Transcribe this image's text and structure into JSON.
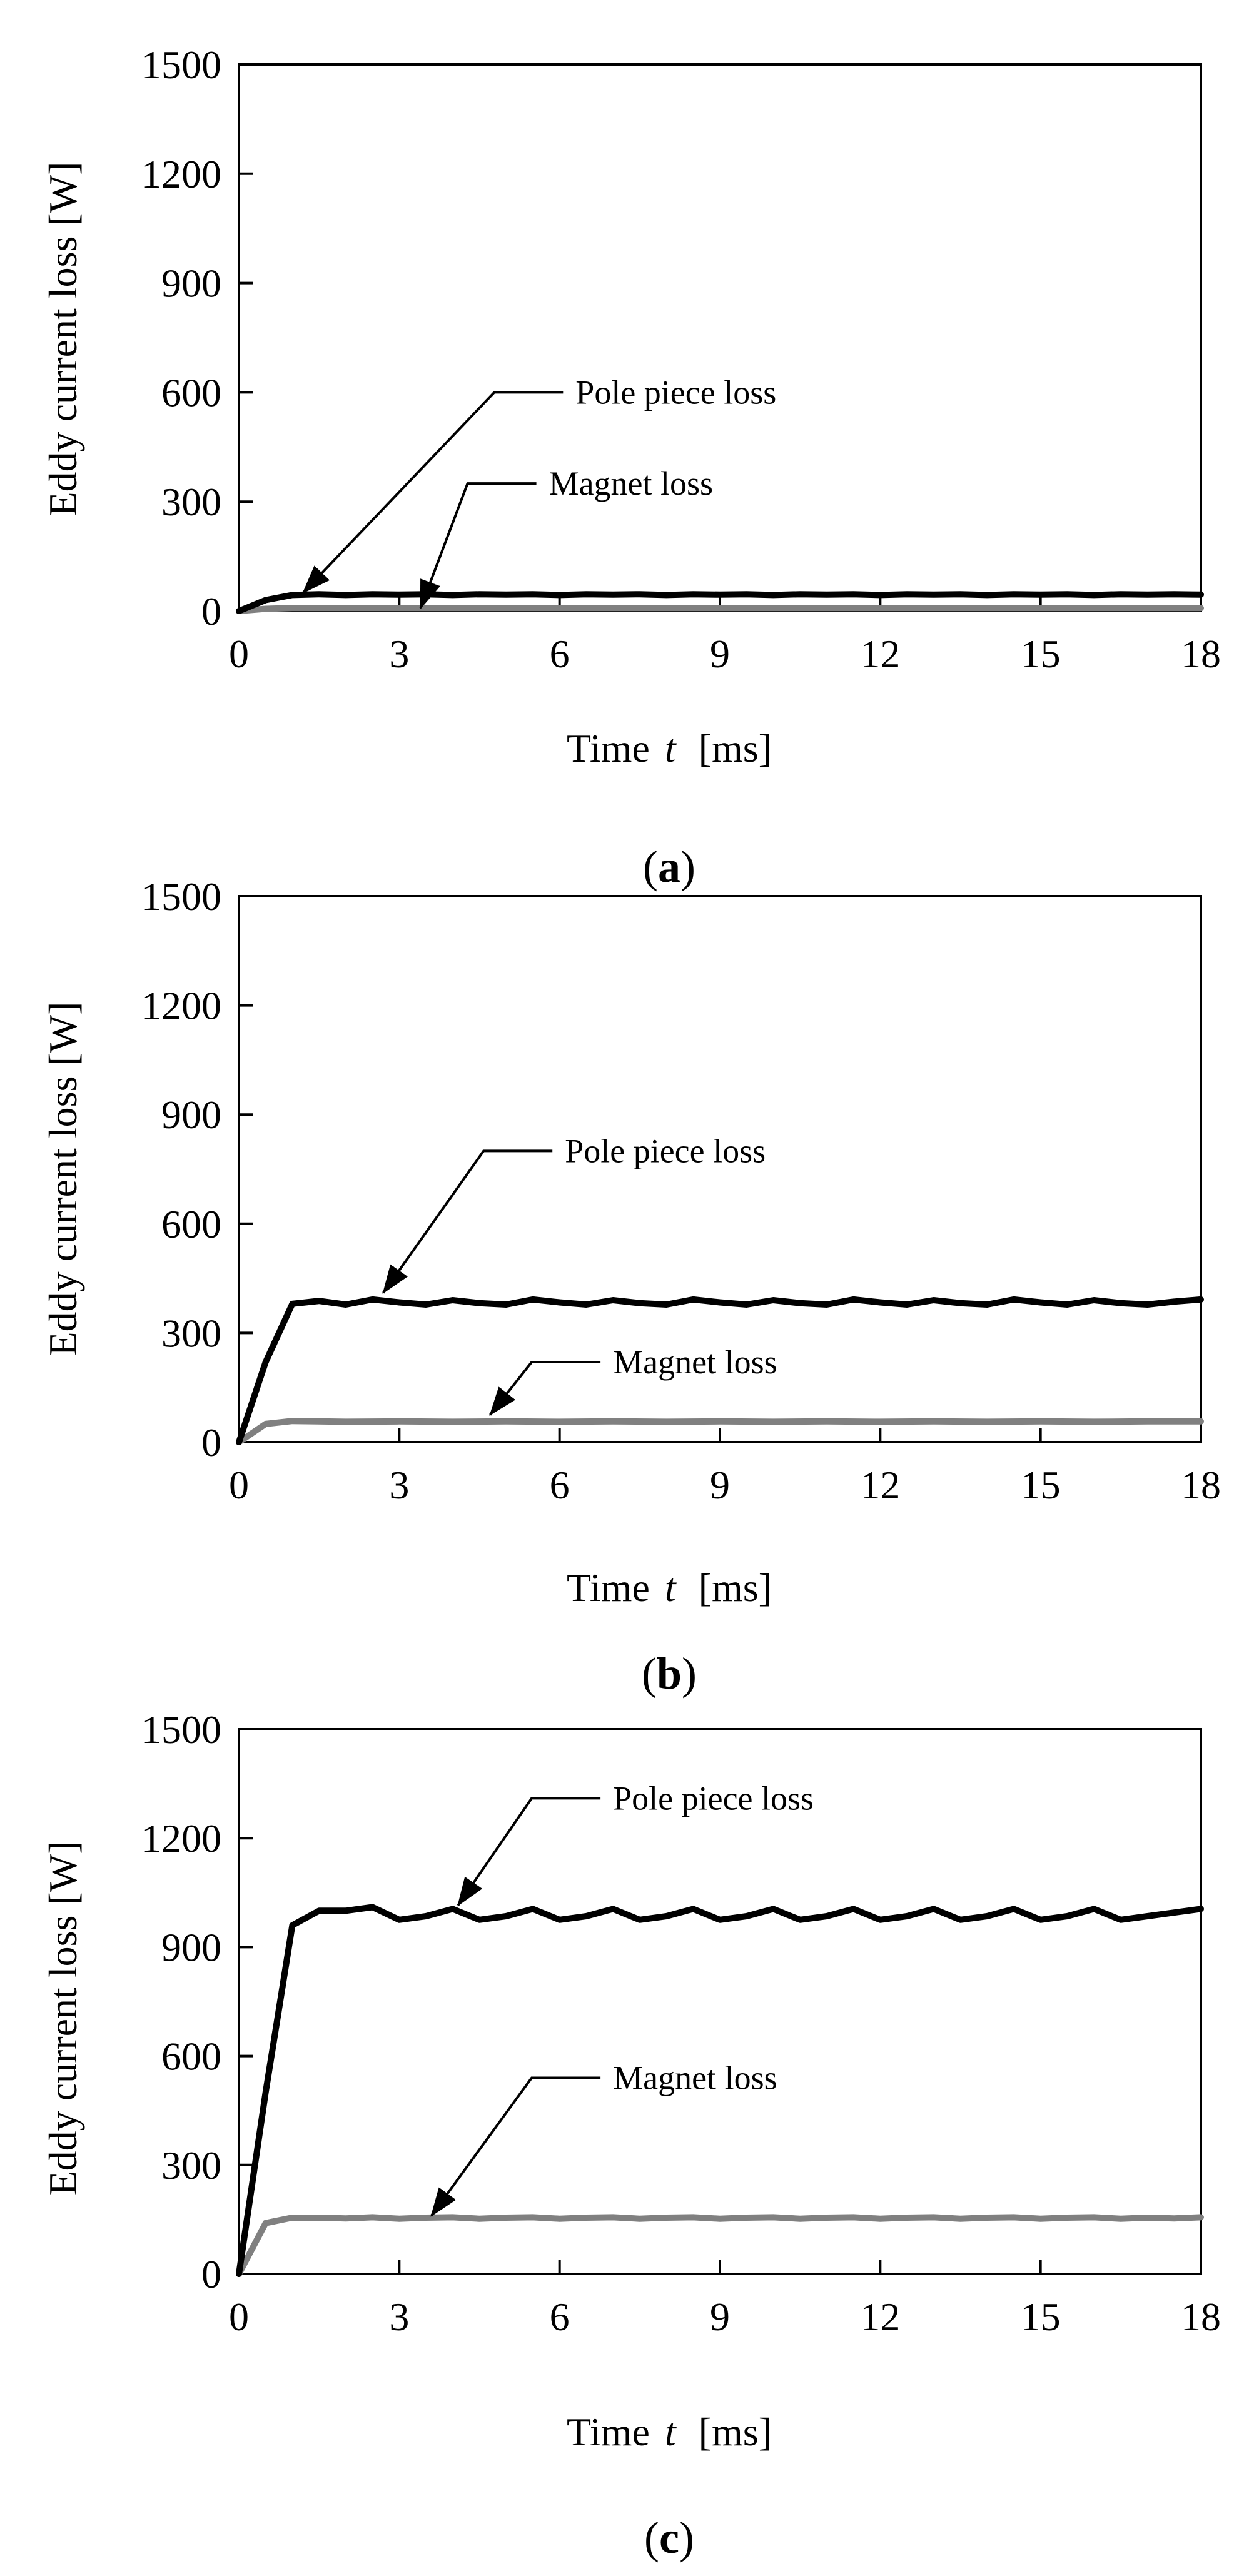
{
  "figure": {
    "colors": {
      "background": "#ffffff",
      "axis": "#000000",
      "pole_piece_series": "#000000",
      "magnet_series": "#808080"
    }
  },
  "chart_data": [
    {
      "type": "line",
      "caption_letter": "a",
      "xlabel_main": "Time",
      "xlabel_var": "t",
      "xlabel_unit": "[ms]",
      "ylabel": "Eddy  current  loss  [W]",
      "xlim": [
        0,
        18
      ],
      "ylim": [
        0,
        1500
      ],
      "x_ticks": [
        0,
        3,
        6,
        9,
        12,
        15,
        18
      ],
      "y_ticks": [
        0,
        300,
        600,
        900,
        1200,
        1500
      ],
      "x_tick_labels": [
        "0",
        "3",
        "6",
        "9",
        "12",
        "15",
        "18"
      ],
      "y_tick_labels": [
        "0",
        "300",
        "600",
        "900",
        "1200",
        "1500"
      ],
      "series": [
        {
          "name": "Pole piece loss",
          "color": "#000000",
          "x": [
            0,
            0.5,
            1,
            1.5,
            2,
            2.5,
            3,
            3.5,
            4,
            4.5,
            5,
            5.5,
            6,
            6.5,
            7,
            7.5,
            8,
            8.5,
            9,
            9.5,
            10,
            10.5,
            11,
            11.5,
            12,
            12.5,
            13,
            13.5,
            14,
            14.5,
            15,
            15.5,
            16,
            16.5,
            17,
            17.5,
            18
          ],
          "y": [
            0,
            30,
            44,
            46,
            44,
            46,
            45,
            46,
            44,
            46,
            45,
            46,
            44,
            46,
            45,
            46,
            44,
            46,
            45,
            46,
            44,
            46,
            45,
            46,
            44,
            46,
            45,
            46,
            44,
            46,
            45,
            46,
            44,
            46,
            45,
            46,
            45
          ]
        },
        {
          "name": "Magnet loss",
          "color": "#808080",
          "x": [
            0,
            0.5,
            1,
            2,
            3,
            4,
            5,
            6,
            7,
            8,
            9,
            10,
            11,
            12,
            13,
            14,
            15,
            16,
            17,
            18
          ],
          "y": [
            0,
            6,
            8,
            8,
            8,
            8,
            8,
            8,
            8,
            8,
            8,
            8,
            8,
            8,
            8,
            8,
            8,
            8,
            8,
            8
          ]
        }
      ],
      "annotations": [
        {
          "text": "Pole piece loss",
          "series": "Pole piece loss",
          "text_x": 6.3,
          "text_y": 600,
          "tip_x": 1.2,
          "tip_y": 50
        },
        {
          "text": "Magnet loss",
          "series": "Magnet loss",
          "text_x": 5.8,
          "text_y": 350,
          "tip_x": 3.4,
          "tip_y": 8
        }
      ]
    },
    {
      "type": "line",
      "caption_letter": "b",
      "xlabel_main": "Time",
      "xlabel_var": "t",
      "xlabel_unit": "[ms]",
      "ylabel": "Eddy  current  loss  [W]",
      "xlim": [
        0,
        18
      ],
      "ylim": [
        0,
        1500
      ],
      "x_ticks": [
        0,
        3,
        6,
        9,
        12,
        15,
        18
      ],
      "y_ticks": [
        0,
        300,
        600,
        900,
        1200,
        1500
      ],
      "x_tick_labels": [
        "0",
        "3",
        "6",
        "9",
        "12",
        "15",
        "18"
      ],
      "y_tick_labels": [
        "0",
        "300",
        "600",
        "900",
        "1200",
        "1500"
      ],
      "series": [
        {
          "name": "Pole piece loss",
          "color": "#000000",
          "x": [
            0,
            0.5,
            1,
            1.5,
            2,
            2.5,
            3,
            3.5,
            4,
            4.5,
            5,
            5.5,
            6,
            6.5,
            7,
            7.5,
            8,
            8.5,
            9,
            9.5,
            10,
            10.5,
            11,
            11.5,
            12,
            12.5,
            13,
            13.5,
            14,
            14.5,
            15,
            15.5,
            16,
            16.5,
            17,
            17.5,
            18
          ],
          "y": [
            0,
            220,
            380,
            388,
            378,
            392,
            384,
            378,
            390,
            382,
            378,
            392,
            384,
            378,
            390,
            382,
            378,
            392,
            384,
            378,
            390,
            382,
            378,
            392,
            384,
            378,
            390,
            382,
            378,
            392,
            384,
            378,
            390,
            382,
            378,
            386,
            392
          ]
        },
        {
          "name": "Magnet loss",
          "color": "#808080",
          "x": [
            0,
            0.5,
            1,
            2,
            3,
            4,
            5,
            6,
            7,
            8,
            9,
            10,
            11,
            12,
            13,
            14,
            15,
            16,
            17,
            18
          ],
          "y": [
            0,
            50,
            58,
            56,
            57,
            56,
            57,
            56,
            57,
            56,
            57,
            56,
            57,
            56,
            57,
            56,
            57,
            56,
            57,
            57
          ]
        }
      ],
      "annotations": [
        {
          "text": "Pole piece loss",
          "series": "Pole piece loss",
          "text_x": 6.1,
          "text_y": 800,
          "tip_x": 2.7,
          "tip_y": 410
        },
        {
          "text": "Magnet loss",
          "series": "Magnet loss",
          "text_x": 7.0,
          "text_y": 220,
          "tip_x": 4.7,
          "tip_y": 75
        }
      ]
    },
    {
      "type": "line",
      "caption_letter": "c",
      "xlabel_main": "Time",
      "xlabel_var": "t",
      "xlabel_unit": "[ms]",
      "ylabel": "Eddy  current  loss  [W]",
      "xlim": [
        0,
        18
      ],
      "ylim": [
        0,
        1500
      ],
      "x_ticks": [
        0,
        3,
        6,
        9,
        12,
        15,
        18
      ],
      "y_ticks": [
        0,
        300,
        600,
        900,
        1200,
        1500
      ],
      "x_tick_labels": [
        "0",
        "3",
        "6",
        "9",
        "12",
        "15",
        "18"
      ],
      "y_tick_labels": [
        "0",
        "300",
        "600",
        "900",
        "1200",
        "1500"
      ],
      "series": [
        {
          "name": "Pole piece loss",
          "color": "#000000",
          "x": [
            0,
            0.5,
            1,
            1.5,
            2,
            2.5,
            3,
            3.5,
            4,
            4.5,
            5,
            5.5,
            6,
            6.5,
            7,
            7.5,
            8,
            8.5,
            9,
            9.5,
            10,
            10.5,
            11,
            11.5,
            12,
            12.5,
            13,
            13.5,
            14,
            14.5,
            15,
            15.5,
            16,
            16.5,
            17,
            17.5,
            18
          ],
          "y": [
            0,
            500,
            960,
            1000,
            1000,
            1010,
            975,
            985,
            1005,
            975,
            985,
            1005,
            975,
            985,
            1005,
            975,
            985,
            1005,
            975,
            985,
            1005,
            975,
            985,
            1005,
            975,
            985,
            1005,
            975,
            985,
            1005,
            975,
            985,
            1005,
            975,
            985,
            995,
            1005
          ]
        },
        {
          "name": "Magnet loss",
          "color": "#808080",
          "x": [
            0,
            0.5,
            1,
            1.5,
            2,
            2.5,
            3,
            3.5,
            4,
            4.5,
            5,
            5.5,
            6,
            6.5,
            7,
            7.5,
            8,
            8.5,
            9,
            9.5,
            10,
            10.5,
            11,
            11.5,
            12,
            12.5,
            13,
            13.5,
            14,
            14.5,
            15,
            15.5,
            16,
            16.5,
            17,
            17.5,
            18
          ],
          "y": [
            0,
            140,
            155,
            155,
            153,
            156,
            152,
            155,
            156,
            152,
            155,
            156,
            152,
            155,
            156,
            152,
            155,
            156,
            152,
            155,
            156,
            152,
            155,
            156,
            152,
            155,
            156,
            152,
            155,
            156,
            152,
            155,
            156,
            152,
            155,
            153,
            156
          ]
        }
      ],
      "annotations": [
        {
          "text": "Pole piece loss",
          "series": "Pole piece loss",
          "text_x": 7.0,
          "text_y": 1310,
          "tip_x": 4.1,
          "tip_y": 1015
        },
        {
          "text": "Magnet loss",
          "series": "Magnet loss",
          "text_x": 7.0,
          "text_y": 540,
          "tip_x": 3.6,
          "tip_y": 160
        }
      ]
    }
  ]
}
